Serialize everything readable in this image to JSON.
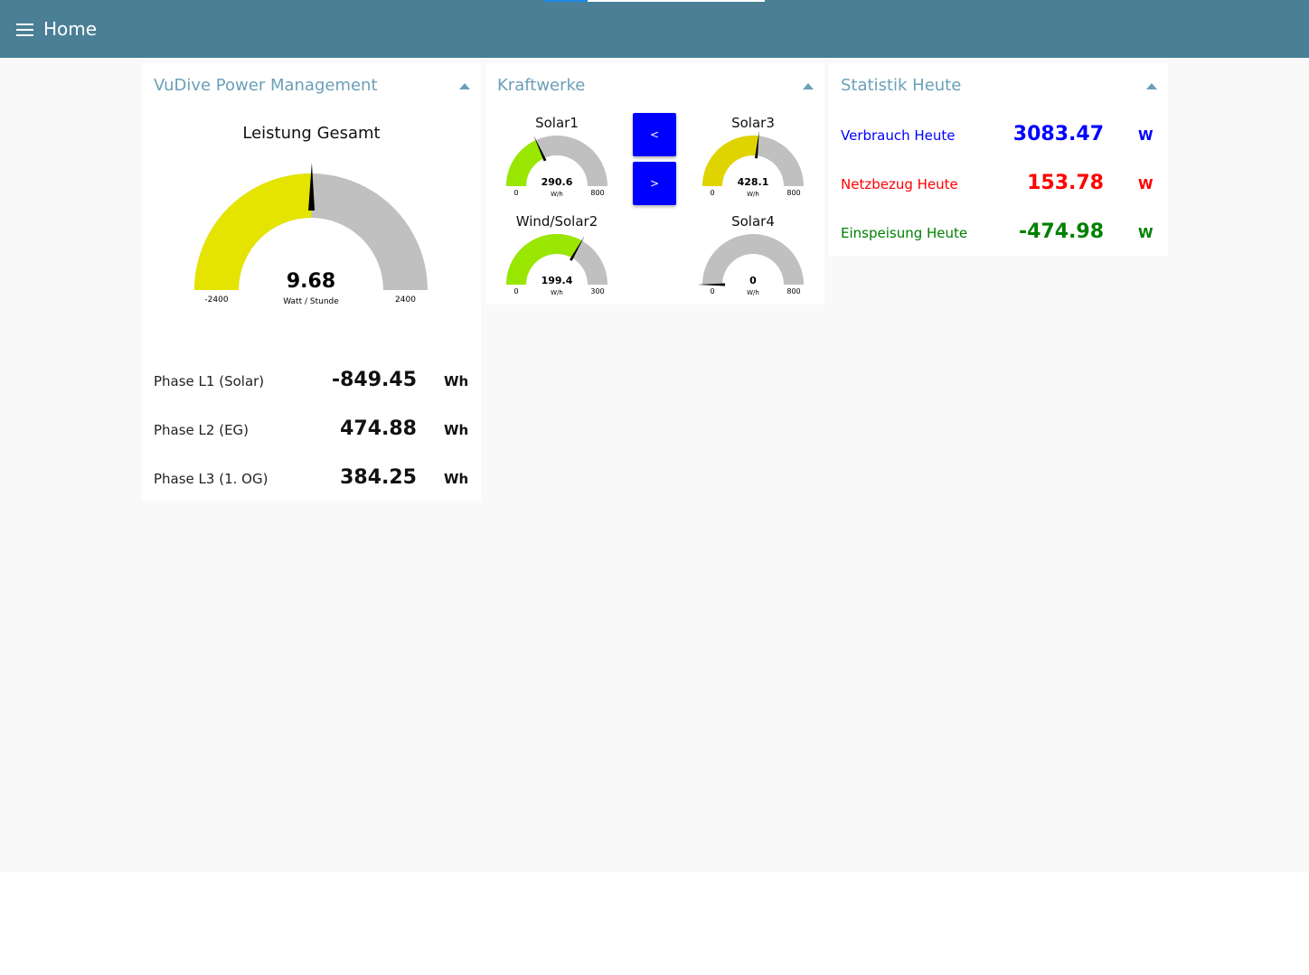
{
  "header": {
    "title": "Home"
  },
  "power_card": {
    "title": "VuDive Power Management",
    "gauge": {
      "title": "Leistung Gesamt",
      "value": 9.68,
      "value_text": "9.68",
      "unit": "Watt / Stunde",
      "min": -2400,
      "max": 2400,
      "min_text": "-2400",
      "max_text": "2400",
      "color": "#e4e400"
    },
    "phases": [
      {
        "label": "Phase L1 (Solar)",
        "value": "-849.45",
        "unit": "Wh"
      },
      {
        "label": "Phase L2 (EG)",
        "value": "474.88",
        "unit": "Wh"
      },
      {
        "label": "Phase L3 (1. OG)",
        "value": "384.25",
        "unit": "Wh"
      }
    ]
  },
  "plants_card": {
    "title": "Kraftwerke",
    "prev_label": "<",
    "next_label": ">",
    "gauges": [
      {
        "title": "Solar1",
        "value": 290.6,
        "value_text": "290.6",
        "unit": "W/h",
        "min": 0,
        "max": 800,
        "min_text": "0",
        "max_text": "800",
        "color": "#99e600"
      },
      {
        "title": "Solar3",
        "value": 428.1,
        "value_text": "428.1",
        "unit": "W/h",
        "min": 0,
        "max": 800,
        "min_text": "0",
        "max_text": "800",
        "color": "#e0d400"
      },
      {
        "title": "Wind/Solar2",
        "value": 199.4,
        "value_text": "199.4",
        "unit": "W/h",
        "min": 0,
        "max": 300,
        "min_text": "0",
        "max_text": "300",
        "color": "#99e600"
      },
      {
        "title": "Solar4",
        "value": 0,
        "value_text": "0",
        "unit": "W/h",
        "min": 0,
        "max": 800,
        "min_text": "0",
        "max_text": "800",
        "color": "#99e600"
      }
    ]
  },
  "stats_card": {
    "title": "Statistik Heute",
    "rows": [
      {
        "label": "Verbrauch Heute",
        "value": "3083.47",
        "unit": "W",
        "color": "#0000ff"
      },
      {
        "label": "Netzbezug Heute",
        "value": "153.78",
        "unit": "W",
        "color": "#ff0000"
      },
      {
        "label": "Einspeisung Heute",
        "value": "-474.98",
        "unit": "W",
        "color": "#008000"
      }
    ]
  },
  "colors": {
    "toolbar": "#4a7f95",
    "accent": "#6aa0b8",
    "button": "#0000ff",
    "track": "#c0c0c0"
  }
}
